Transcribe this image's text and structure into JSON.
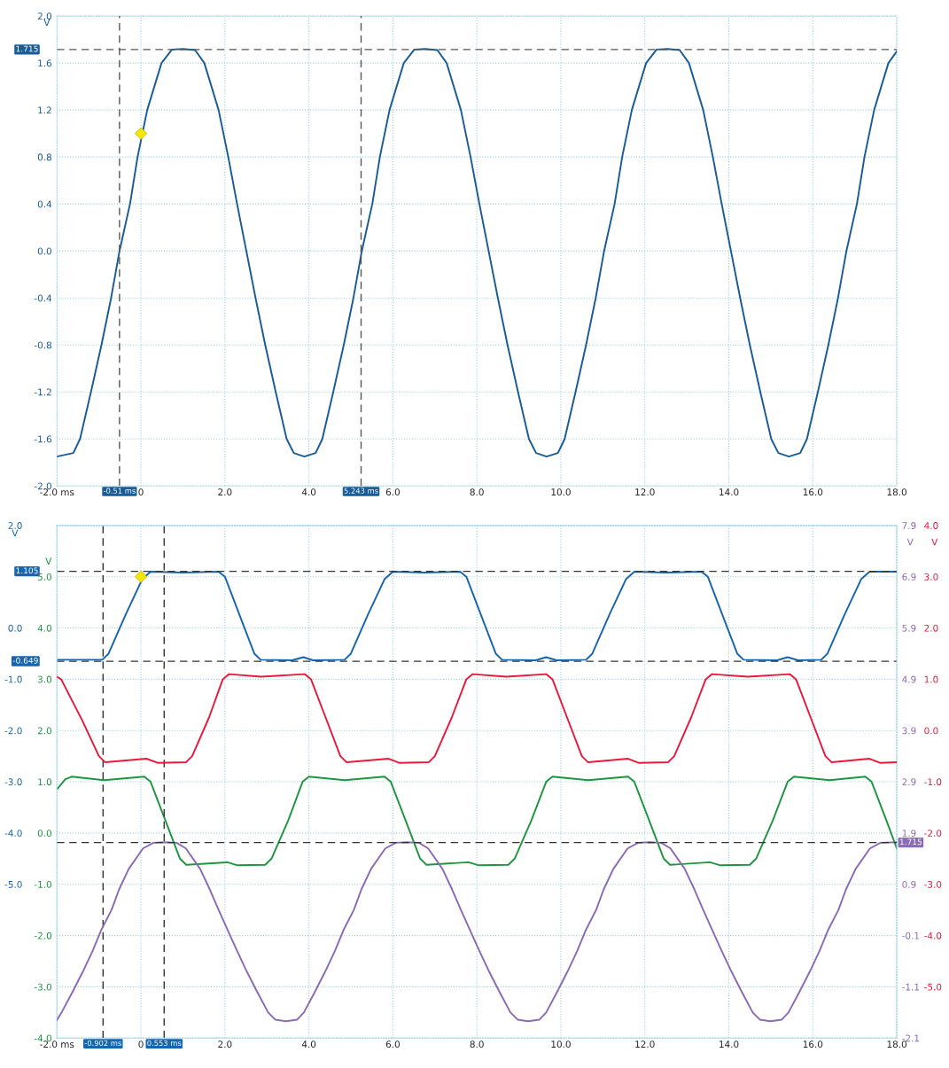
{
  "chart_data": [
    {
      "type": "line",
      "xlim": [
        -2,
        18
      ],
      "ylim": [
        -2,
        2
      ],
      "xticks": [
        {
          "value": -2,
          "label": "-2.0 ms"
        },
        {
          "value": 0,
          "label": "0"
        },
        {
          "value": 2,
          "label": "2.0"
        },
        {
          "value": 4,
          "label": "4.0"
        },
        {
          "value": 6,
          "label": "6.0"
        },
        {
          "value": 8,
          "label": "8.0"
        },
        {
          "value": 10,
          "label": "10.0"
        },
        {
          "value": 12,
          "label": "12.0"
        },
        {
          "value": 14,
          "label": "14.0"
        },
        {
          "value": 16,
          "label": "16.0"
        },
        {
          "value": 18,
          "label": "18.0"
        }
      ],
      "yticks": [
        {
          "value": -2,
          "label": "-2.0"
        },
        -1.6,
        -1.2,
        -0.8,
        -0.4,
        {
          "value": 0,
          "label": "0.0"
        },
        0.4,
        0.8,
        1.2,
        1.6,
        {
          "value": 2,
          "label": "2.0"
        }
      ],
      "ylabel": "V",
      "grid": true,
      "series": [
        {
          "color": "#1a5c96",
          "x": [
            -2.0,
            -1.61,
            -1.45,
            -1.19,
            -0.94,
            -0.71,
            -0.51,
            -0.26,
            -0.08,
            0.15,
            0.49,
            0.74,
            1.0,
            1.29,
            1.51,
            1.85,
            2.08,
            2.29,
            2.51,
            2.73,
            2.96,
            3.21,
            3.47,
            3.64,
            3.89,
            4.16,
            4.32,
            4.58,
            4.83,
            5.06,
            5.26,
            5.51,
            5.69,
            5.92,
            6.26,
            6.51,
            6.77,
            7.06,
            7.28,
            7.62,
            7.85,
            8.06,
            8.28,
            8.5,
            8.73,
            8.98,
            9.24,
            9.41,
            9.66,
            9.93,
            10.09,
            10.35,
            10.6,
            10.83,
            11.03,
            11.28,
            11.46,
            11.69,
            12.03,
            12.28,
            12.54,
            12.83,
            13.05,
            13.39,
            13.62,
            13.83,
            14.05,
            14.27,
            14.5,
            14.75,
            15.01,
            15.18,
            15.43,
            15.7,
            15.86,
            16.12,
            16.37,
            16.6,
            16.8,
            17.05,
            17.23,
            17.46,
            17.8,
            18.0
          ],
          "values": [
            -1.75,
            -1.72,
            -1.6,
            -1.2,
            -0.8,
            -0.4,
            0,
            0.4,
            0.8,
            1.2,
            1.6,
            1.715,
            1.72,
            1.71,
            1.6,
            1.2,
            0.8,
            0.4,
            0,
            -0.4,
            -0.8,
            -1.2,
            -1.6,
            -1.72,
            -1.75,
            -1.72,
            -1.6,
            -1.2,
            -0.8,
            -0.4,
            0,
            0.4,
            0.8,
            1.2,
            1.6,
            1.715,
            1.72,
            1.71,
            1.6,
            1.2,
            0.8,
            0.4,
            0,
            -0.4,
            -0.8,
            -1.2,
            -1.6,
            -1.72,
            -1.75,
            -1.72,
            -1.6,
            -1.2,
            -0.8,
            -0.4,
            0,
            0.4,
            0.8,
            1.2,
            1.6,
            1.715,
            1.72,
            1.71,
            1.6,
            1.2,
            0.8,
            0.4,
            0,
            -0.4,
            -0.8,
            -1.2,
            -1.6,
            -1.72,
            -1.75,
            -1.72,
            -1.6,
            -1.2,
            -0.8,
            -0.4,
            0,
            0.4,
            0.8,
            1.2,
            1.6,
            1.7
          ]
        },
        {
          "type": "scatter",
          "color": "#f5e600",
          "marker": "diamond",
          "x": [
            0
          ],
          "values": [
            1.0
          ]
        }
      ],
      "ref_lines": [
        {
          "axis": "y",
          "value": 1.715,
          "label": "1.715",
          "color": "#555555",
          "line_style": "dashed"
        },
        {
          "axis": "x",
          "value": -0.51,
          "label": "-0.51 ms",
          "color": "#555555",
          "line_style": "dashed"
        },
        {
          "axis": "x",
          "value": 5.243,
          "label": "5.243 ms",
          "color": "#555555",
          "line_style": "dashed"
        }
      ]
    },
    {
      "type": "line",
      "xlim": [
        -2,
        18
      ],
      "xticks": [
        {
          "value": -2,
          "label": "-2.0 ms"
        },
        {
          "value": 0,
          "label": "0"
        },
        {
          "value": 2,
          "label": "2.0"
        },
        {
          "value": 4,
          "label": "4.0"
        },
        {
          "value": 6,
          "label": "6.0"
        },
        {
          "value": 8,
          "label": "8.0"
        },
        {
          "value": 10,
          "label": "10.0"
        },
        {
          "value": 12,
          "label": "12.0"
        },
        {
          "value": 14,
          "label": "14.0"
        },
        {
          "value": 16,
          "label": "16.0"
        },
        {
          "value": 18,
          "label": "18.0"
        }
      ],
      "ylim": [
        -8,
        2
      ],
      "yticks": [
        {
          "value": -8,
          "label": null
        },
        {
          "value": -7,
          "label": null
        },
        {
          "value": -6,
          "label": null
        },
        {
          "value": -5,
          "label": "-5.0"
        },
        {
          "value": -4,
          "label": "-4.0"
        },
        {
          "value": -3,
          "label": "-3.0"
        },
        {
          "value": -2,
          "label": "-2.0"
        },
        {
          "value": -1,
          "label": "-1.0"
        },
        {
          "value": 0,
          "label": "0.0"
        },
        {
          "value": 1,
          "label": null
        },
        {
          "value": 2,
          "label": "2.0"
        }
      ],
      "ylabel": "V",
      "y2lim": [
        -4,
        6
      ],
      "y2ticks": [
        {
          "value": -4,
          "label": "-4.0"
        },
        {
          "value": -3,
          "label": "-3.0"
        },
        {
          "value": -2,
          "label": "-2.0"
        },
        {
          "value": -1,
          "label": "-1.0"
        },
        {
          "value": 0,
          "label": "0.0"
        },
        {
          "value": 1,
          "label": "1.0"
        },
        {
          "value": 2,
          "label": "2.0"
        },
        {
          "value": 3,
          "label": "3.0"
        },
        {
          "value": 4,
          "label": "4.0"
        },
        {
          "value": 5,
          "label": "5.0"
        }
      ],
      "y2label": "V",
      "grid": true,
      "series": [
        {
          "axis": "y",
          "color": "#1565b0",
          "x": [
            -2.0,
            -0.92,
            -0.77,
            -0.37,
            0.03,
            0.23,
            1.0,
            1.85,
            2.0,
            2.35,
            2.7,
            2.85,
            3.6,
            3.87,
            4.1,
            4.85,
            5.0,
            5.4,
            5.8,
            6.0,
            6.75,
            7.6,
            7.75,
            8.1,
            8.45,
            8.6,
            9.4,
            9.65,
            9.9,
            10.6,
            10.75,
            11.15,
            11.55,
            11.75,
            12.5,
            13.35,
            13.5,
            13.85,
            14.2,
            14.35,
            15.15,
            15.4,
            15.65,
            16.2,
            16.35,
            16.75,
            17.15,
            17.35,
            18.0
          ],
          "values": [
            -0.62,
            -0.62,
            -0.5,
            0.25,
            0.95,
            1.1,
            1.08,
            1.1,
            1.0,
            0.25,
            -0.5,
            -0.62,
            -0.63,
            -0.57,
            -0.63,
            -0.62,
            -0.5,
            0.25,
            0.95,
            1.1,
            1.08,
            1.1,
            1.0,
            0.25,
            -0.5,
            -0.62,
            -0.63,
            -0.57,
            -0.63,
            -0.62,
            -0.5,
            0.25,
            0.95,
            1.1,
            1.08,
            1.1,
            1.0,
            0.25,
            -0.5,
            -0.62,
            -0.63,
            -0.57,
            -0.63,
            -0.62,
            -0.5,
            0.25,
            0.95,
            1.1,
            1.1
          ]
        },
        {
          "axis": "y2",
          "color": "#1e9640",
          "x": [
            -2.0,
            -1.8,
            -1.65,
            -0.88,
            0.08,
            0.23,
            0.58,
            0.93,
            1.08,
            2.06,
            2.3,
            2.96,
            3.11,
            3.51,
            3.85,
            4.0,
            4.85,
            5.8,
            5.95,
            6.3,
            6.65,
            6.8,
            7.8,
            8.05,
            8.75,
            8.9,
            9.3,
            9.65,
            9.8,
            10.65,
            11.6,
            11.75,
            12.1,
            12.45,
            12.6,
            13.55,
            13.8,
            14.5,
            14.65,
            15.05,
            15.4,
            15.55,
            16.4,
            17.25,
            17.4,
            17.75,
            18.0
          ],
          "values": [
            0.85,
            1.05,
            1.1,
            1.03,
            1.1,
            1.0,
            0.25,
            -0.5,
            -0.62,
            -0.57,
            -0.63,
            -0.62,
            -0.5,
            0.25,
            1.0,
            1.1,
            1.03,
            1.1,
            1.0,
            0.25,
            -0.5,
            -0.62,
            -0.57,
            -0.63,
            -0.62,
            -0.5,
            0.25,
            1.0,
            1.1,
            1.03,
            1.1,
            1.0,
            0.25,
            -0.5,
            -0.62,
            -0.57,
            -0.63,
            -0.62,
            -0.5,
            0.25,
            1.0,
            1.1,
            1.03,
            1.1,
            1.0,
            0.25,
            -0.3
          ]
        },
        {
          "type": "scatter",
          "axis": "y",
          "color": "#f5e600",
          "marker": "diamond",
          "x": [
            0
          ],
          "values": [
            1.0
          ]
        }
      ],
      "ref_lines": [
        {
          "axis": "y",
          "value": 1.105,
          "label": "1.105",
          "color": "#333333",
          "line_style": "dashed"
        },
        {
          "axis": "y",
          "value": -0.649,
          "label": "-0.649",
          "color": "#333333",
          "line_style": "dashed"
        },
        {
          "axis": "x",
          "value": -0.902,
          "label": "-0.902 ms",
          "color": "#333333",
          "line_style": "dashed"
        },
        {
          "axis": "x",
          "value": 0.553,
          "label": "0.553 ms",
          "color": "#333333",
          "line_style": "dashed"
        }
      ]
    },
    {
      "type": "line",
      "xlim": [
        -2,
        18
      ],
      "tick_labels": "y",
      "ylim": [
        -2.1,
        7.9
      ],
      "yticks": [
        -2.1,
        -1.1,
        -0.1,
        0.9,
        1.9,
        2.9,
        3.9,
        4.9,
        5.9,
        6.9,
        7.9
      ],
      "ylabel": "V",
      "y2lim": [
        -6,
        4
      ],
      "y2ticks": [
        {
          "value": -5,
          "label": "-5.0"
        },
        {
          "value": -4,
          "label": "-4.0"
        },
        {
          "value": -3,
          "label": "-3.0"
        },
        {
          "value": -2,
          "label": "-2.0"
        },
        {
          "value": -1,
          "label": "-1.0"
        },
        {
          "value": 0,
          "label": "0.0"
        },
        {
          "value": 1,
          "label": "1.0"
        },
        {
          "value": 2,
          "label": "2.0"
        },
        {
          "value": 3,
          "label": "3.0"
        },
        {
          "value": 4,
          "label": "4.0"
        }
      ],
      "y2label": "V",
      "series": [
        {
          "axis": "y2",
          "color": "#e8193c",
          "x": [
            -2.0,
            -1.9,
            -1.4,
            -1.0,
            -0.85,
            0.13,
            0.4,
            1.07,
            1.22,
            1.62,
            1.95,
            2.1,
            2.86,
            3.9,
            4.05,
            4.4,
            4.75,
            4.9,
            5.9,
            6.15,
            6.85,
            7.0,
            7.4,
            7.75,
            7.9,
            8.7,
            9.65,
            9.8,
            10.15,
            10.5,
            10.65,
            11.6,
            11.85,
            12.55,
            12.7,
            13.1,
            13.45,
            13.6,
            14.45,
            15.45,
            15.6,
            15.95,
            16.3,
            16.45,
            17.35,
            17.6,
            18.0
          ],
          "values": [
            1.05,
            1.0,
            0.2,
            -0.5,
            -0.62,
            -0.55,
            -0.63,
            -0.62,
            -0.5,
            0.25,
            1.0,
            1.1,
            1.05,
            1.1,
            1.0,
            0.25,
            -0.5,
            -0.62,
            -0.55,
            -0.63,
            -0.62,
            -0.5,
            0.25,
            1.0,
            1.1,
            1.05,
            1.1,
            1.0,
            0.25,
            -0.5,
            -0.62,
            -0.55,
            -0.63,
            -0.62,
            -0.5,
            0.25,
            1.0,
            1.1,
            1.05,
            1.1,
            1.0,
            0.25,
            -0.5,
            -0.62,
            -0.55,
            -0.63,
            -0.62
          ]
        },
        {
          "axis": "y",
          "color": "#8b6bb5",
          "x": [
            -2.0,
            -1.89,
            -1.63,
            -1.38,
            -1.15,
            -0.95,
            -0.7,
            -0.52,
            -0.29,
            0.05,
            0.3,
            0.56,
            0.85,
            1.07,
            1.41,
            1.64,
            1.85,
            2.07,
            2.29,
            2.52,
            2.77,
            3.03,
            3.2,
            3.45,
            3.72,
            3.88,
            4.14,
            4.39,
            4.62,
            4.82,
            5.07,
            5.25,
            5.48,
            5.82,
            6.07,
            6.33,
            6.62,
            6.84,
            7.18,
            7.41,
            7.62,
            7.84,
            8.06,
            8.29,
            8.54,
            8.8,
            8.97,
            9.22,
            9.49,
            9.65,
            9.91,
            10.16,
            10.39,
            10.59,
            10.84,
            11.02,
            11.25,
            11.59,
            11.84,
            12.1,
            12.39,
            12.61,
            12.95,
            13.18,
            13.39,
            13.61,
            13.83,
            14.06,
            14.31,
            14.57,
            14.74,
            14.99,
            15.26,
            15.42,
            15.68,
            15.93,
            16.16,
            16.36,
            16.61,
            16.79,
            17.02,
            17.36,
            17.61,
            18.0
          ],
          "values": [
            -1.75,
            -1.6,
            -1.2,
            -0.8,
            -0.4,
            0,
            0.4,
            0.8,
            1.2,
            1.6,
            1.71,
            1.72,
            1.71,
            1.6,
            1.2,
            0.8,
            0.4,
            0,
            -0.4,
            -0.8,
            -1.2,
            -1.6,
            -1.74,
            -1.77,
            -1.74,
            -1.6,
            -1.2,
            -0.8,
            -0.4,
            0,
            0.4,
            0.8,
            1.2,
            1.6,
            1.71,
            1.72,
            1.71,
            1.6,
            1.2,
            0.8,
            0.4,
            0,
            -0.4,
            -0.8,
            -1.2,
            -1.6,
            -1.74,
            -1.77,
            -1.74,
            -1.6,
            -1.2,
            -0.8,
            -0.4,
            0,
            0.4,
            0.8,
            1.2,
            1.6,
            1.71,
            1.72,
            1.71,
            1.6,
            1.2,
            0.8,
            0.4,
            0,
            -0.4,
            -0.8,
            -1.2,
            -1.6,
            -1.74,
            -1.77,
            -1.74,
            -1.6,
            -1.2,
            -0.8,
            -0.4,
            0,
            0.4,
            0.8,
            1.2,
            1.6,
            1.71,
            1.72
          ]
        }
      ],
      "ref_lines": [
        {
          "axis": "y",
          "value": 1.715,
          "label": "1.715",
          "color": "#333333",
          "line_style": "dashed"
        }
      ]
    }
  ]
}
